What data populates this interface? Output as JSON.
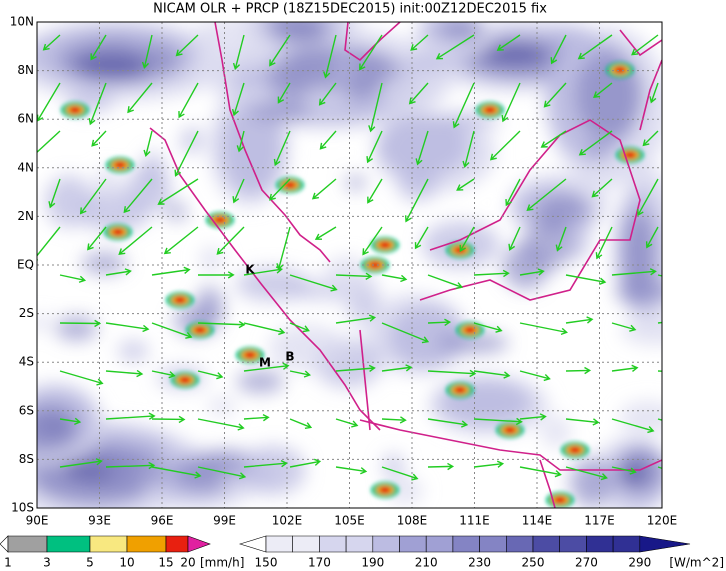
{
  "header": {
    "title": "NICAM OLR + PRCP (18Z15DEC2015) init:00Z12DEC2015 fix"
  },
  "map": {
    "lat_labels": [
      "10N",
      "8N",
      "6N",
      "4N",
      "2N",
      "EQ",
      "2S",
      "4S",
      "6S",
      "8S",
      "10S"
    ],
    "lon_labels": [
      "90E",
      "93E",
      "96E",
      "99E",
      "102E",
      "105E",
      "108E",
      "111E",
      "114E",
      "117E",
      "120E"
    ],
    "stations": [
      "K",
      "M",
      "B"
    ]
  },
  "prcp_colorbar": {
    "labels": [
      1,
      3,
      5,
      10,
      15,
      20
    ],
    "unit": "[mm/h]"
  },
  "olr_colorbar": {
    "labels": [
      150,
      170,
      190,
      210,
      230,
      250,
      270,
      290
    ],
    "unit": "[W/m^2]"
  }
}
